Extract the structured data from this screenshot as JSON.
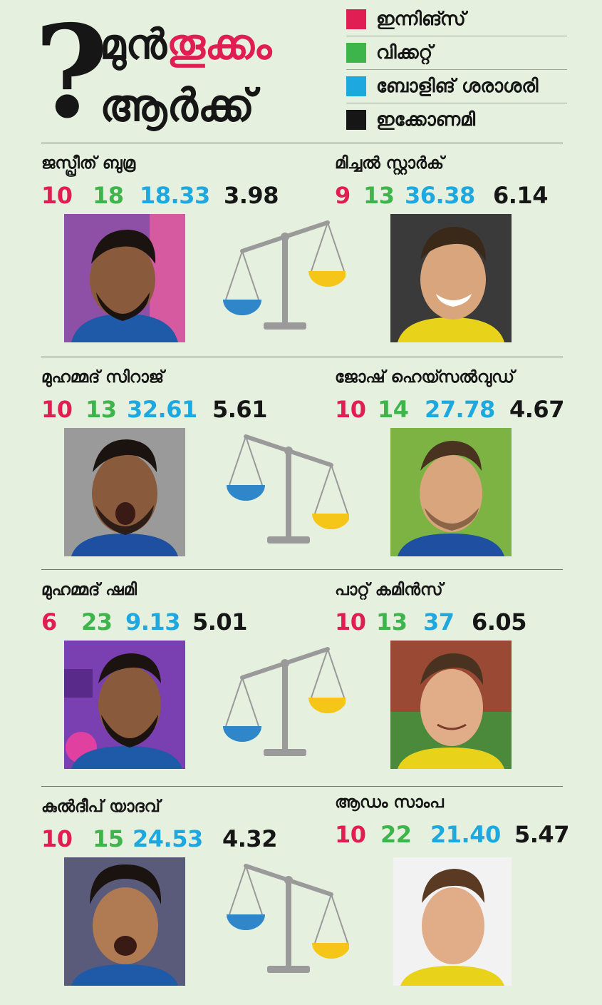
{
  "header": {
    "question_mark": "?",
    "title_line1_a": "മുൻ",
    "title_line1_b": "തൂക്കം",
    "title_line2": "ആർക്ക്"
  },
  "legend": [
    {
      "label": "ഇന്നിങ്സ്",
      "color": "#e11e54"
    },
    {
      "label": "വിക്കറ്റ്",
      "color": "#3db54a"
    },
    {
      "label": "ബോളിങ് ശരാശരി",
      "color": "#1ea8e0"
    },
    {
      "label": "ഇക്കോണമി",
      "color": "#161616"
    }
  ],
  "colors": {
    "innings": "#e11e54",
    "wickets": "#3db54a",
    "average": "#1ea8e0",
    "economy": "#161616",
    "background": "#e6f0df",
    "scale_left_pan": "#2f86c9",
    "scale_right_pan": "#f5c518",
    "scale_frame": "#9a9a9a"
  },
  "matchups": [
    {
      "left": {
        "name": "ജസ്പ്രീത് ബുമ്ര",
        "innings": "10",
        "wickets": "18",
        "average": "18.33",
        "economy": "3.98",
        "photo": "player-photo-bumrah"
      },
      "right": {
        "name": "മിച്ചൽ സ്റ്റാർക്",
        "innings": "9",
        "wickets": "13",
        "average": "36.38",
        "economy": "6.14",
        "photo": "player-photo-starc"
      },
      "scale_tilt": "right-up"
    },
    {
      "left": {
        "name": "മുഹമ്മദ് സിറാജ്",
        "innings": "10",
        "wickets": "13",
        "average": "32.61",
        "economy": "5.61",
        "photo": "player-photo-siraj"
      },
      "right": {
        "name": "ജോഷ് ഹെയ്സൽവുഡ്",
        "innings": "10",
        "wickets": "14",
        "average": "27.78",
        "economy": "4.67",
        "photo": "player-photo-hazlewood"
      },
      "scale_tilt": "left-up"
    },
    {
      "left": {
        "name": "മുഹമ്മദ് ഷമി",
        "innings": "6",
        "wickets": "23",
        "average": "9.13",
        "economy": "5.01",
        "photo": "player-photo-shami"
      },
      "right": {
        "name": "പാറ്റ് കമിൻസ്",
        "innings": "10",
        "wickets": "13",
        "average": "37",
        "economy": "6.05",
        "photo": "player-photo-cummins"
      },
      "scale_tilt": "right-up"
    },
    {
      "left": {
        "name": "കുൽദീപ് യാദവ്",
        "innings": "10",
        "wickets": "15",
        "average": "24.53",
        "economy": "4.32",
        "photo": "player-photo-kuldeep"
      },
      "right": {
        "name": "ആഡം സാംപ",
        "innings": "10",
        "wickets": "22",
        "average": "21.40",
        "economy": "5.47",
        "photo": "player-photo-zampa"
      },
      "scale_tilt": "left-up"
    }
  ]
}
